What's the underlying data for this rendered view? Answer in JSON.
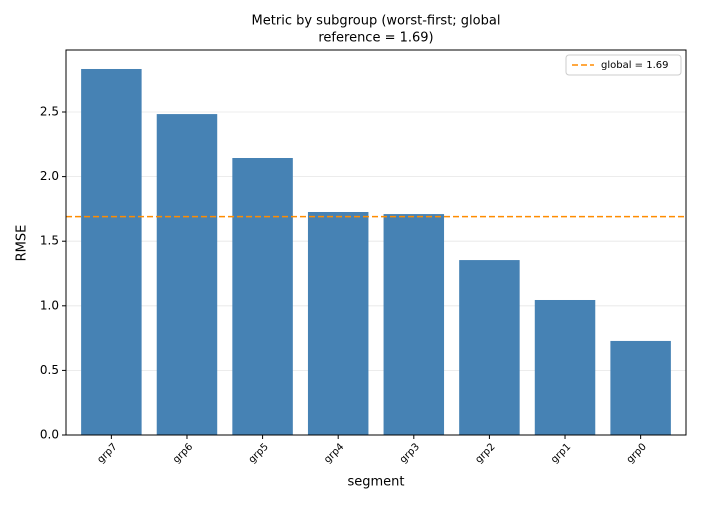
{
  "chart_data": {
    "type": "bar",
    "title": [
      "Metric by subgroup (worst-first; global",
      "reference = 1.69)"
    ],
    "x_label": "segment",
    "y_label": "RMSE",
    "categories": [
      "grp7",
      "grp6",
      "grp5",
      "grp4",
      "grp3",
      "grp2",
      "grp1",
      "grp0"
    ],
    "values": [
      2.833,
      2.484,
      2.144,
      1.726,
      1.71,
      1.354,
      1.045,
      0.728
    ],
    "color": "#4682b4",
    "ylim": [
      0,
      2.98
    ],
    "yticks": [
      {
        "value": 0,
        "label": "0.0"
      },
      {
        "value": 0.5,
        "label": "0.5"
      },
      {
        "value": 1,
        "label": "1.0"
      },
      {
        "value": 1.5,
        "label": "1.5"
      },
      {
        "value": 2,
        "label": "2.0"
      },
      {
        "value": 2.5,
        "label": "2.5"
      }
    ],
    "grid": true,
    "reference_line": {
      "value": 1.69,
      "label": "global = 1.69",
      "color": "#ff8c00"
    },
    "legend": "upper right"
  }
}
